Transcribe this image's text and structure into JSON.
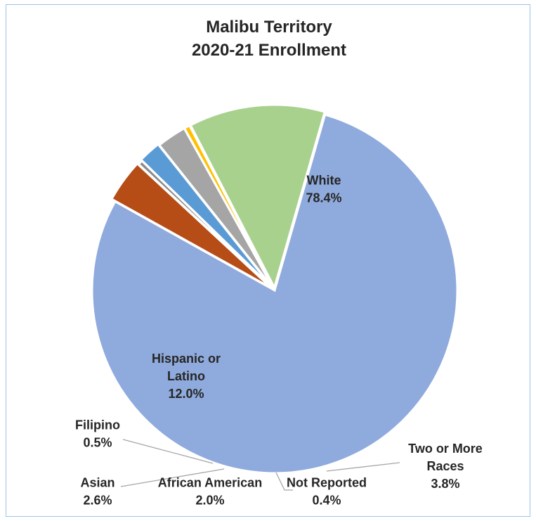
{
  "chart_data": {
    "type": "pie",
    "title": [
      "Malibu Territory",
      "2020-21 Enrollment"
    ],
    "slices": [
      {
        "label": [
          "White"
        ],
        "value_label": "78.4%",
        "value": 78.4,
        "color": "#8faadc"
      },
      {
        "label": [
          "Two or More",
          "Races"
        ],
        "value_label": "3.8%",
        "value": 3.8,
        "color": "#b64d17"
      },
      {
        "label": [
          "Not Reported"
        ],
        "value_label": "0.4%",
        "value": 0.4,
        "color": "#8a8a8a"
      },
      {
        "label": [
          "African American"
        ],
        "value_label": "2.0%",
        "value": 2.0,
        "color": "#5b9bd5"
      },
      {
        "label": [
          "Asian"
        ],
        "value_label": "2.6%",
        "value": 2.6,
        "color": "#a5a5a5"
      },
      {
        "label": [
          "Filipino"
        ],
        "value_label": "0.5%",
        "value": 0.5,
        "color": "#ffc000"
      },
      {
        "label": [
          "Hispanic or",
          "Latino"
        ],
        "value_label": "12.0%",
        "value": 12.0,
        "color": "#a9d18e"
      }
    ],
    "legend": "none",
    "data_labels": "category name and percentage"
  }
}
